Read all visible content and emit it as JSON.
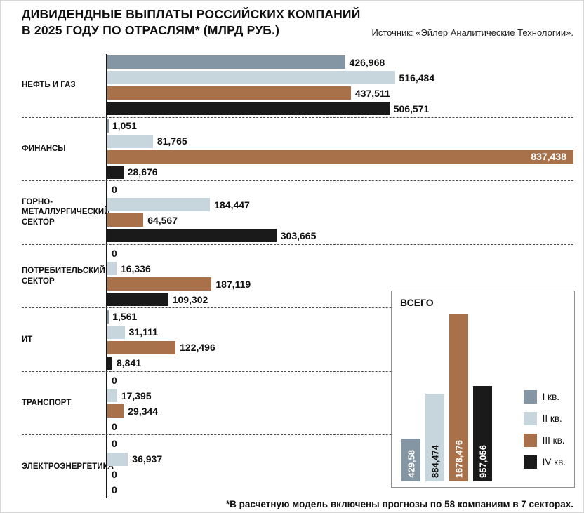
{
  "header": {
    "title_line1": "ДИВИДЕНДНЫЕ ВЫПЛАТЫ РОССИЙСКИХ КОМПАНИЙ",
    "title_line2": "В 2025 ГОДУ ПО ОТРАСЛЯМ* (МЛРД РУБ.)",
    "source": "Источник: «Эйлер Аналитические Технологии»."
  },
  "footnote": "*В расчетную модель включены прогнозы по 58 компаниям в 7 секторах.",
  "inset": {
    "title": "ВСЕГО"
  },
  "legend": [
    {
      "label": "I кв.",
      "color": "#8496a3"
    },
    {
      "label": "II кв.",
      "color": "#c7d6dc"
    },
    {
      "label": "III кв.",
      "color": "#a9714a"
    },
    {
      "label": "IV кв.",
      "color": "#1a1a1a"
    }
  ],
  "chart_data": [
    {
      "type": "bar",
      "orientation": "horizontal",
      "title": "ДИВИДЕНДНЫЕ ВЫПЛАТЫ РОССИЙСКИХ КОМПАНИЙ В 2025 ГОДУ ПО ОТРАСЛЯМ (МЛРД РУБ.)",
      "unit": "млрд руб.",
      "grid": "dashed row separators",
      "legend_position": "inset bottom-right",
      "categories": [
        "НЕФТЬ И ГАЗ",
        "ФИНАНСЫ",
        "ГОРНО-МЕТАЛЛУРГИЧЕСКИЙ СЕКТОР",
        "ПОТРЕБИТЕЛЬСКИЙ СЕКТОР",
        "ИТ",
        "ТРАНСПОРТ",
        "ЭЛЕКТРОЭНЕРГЕТИКА"
      ],
      "xlim": [
        0,
        837.438
      ],
      "series": [
        {
          "name": "I кв.",
          "values": [
            426.968,
            1.051,
            0,
            0,
            1.561,
            0,
            0
          ],
          "labels": [
            "426,968",
            "1,051",
            "0",
            "0",
            "1,561",
            "0",
            "0"
          ]
        },
        {
          "name": "II кв.",
          "values": [
            516.484,
            81.765,
            184.447,
            16.336,
            31.111,
            17.395,
            36.937
          ],
          "labels": [
            "516,484",
            "81,765",
            "184,447",
            "16,336",
            "31,111",
            "17,395",
            "36,937"
          ]
        },
        {
          "name": "III кв.",
          "values": [
            437.511,
            837.438,
            64.567,
            187.119,
            122.496,
            29.344,
            0
          ],
          "labels": [
            "437,511",
            "837,438",
            "64,567",
            "187,119",
            "122,496",
            "29,344",
            "0"
          ]
        },
        {
          "name": "IV кв.",
          "values": [
            506.571,
            28.676,
            303.665,
            109.302,
            8.841,
            0,
            0
          ],
          "labels": [
            "506,571",
            "28,676",
            "303,665",
            "109,302",
            "8,841",
            "0",
            "0"
          ]
        }
      ]
    },
    {
      "type": "bar",
      "orientation": "vertical",
      "title": "ВСЕГО",
      "categories": [
        "I кв.",
        "II кв.",
        "III кв.",
        "IV кв."
      ],
      "values": [
        429.58,
        884.474,
        1678.476,
        957.056
      ],
      "labels": [
        "429,58",
        "884,474",
        "1678,476",
        "957,056"
      ],
      "ylim": [
        0,
        1678.476
      ]
    }
  ]
}
